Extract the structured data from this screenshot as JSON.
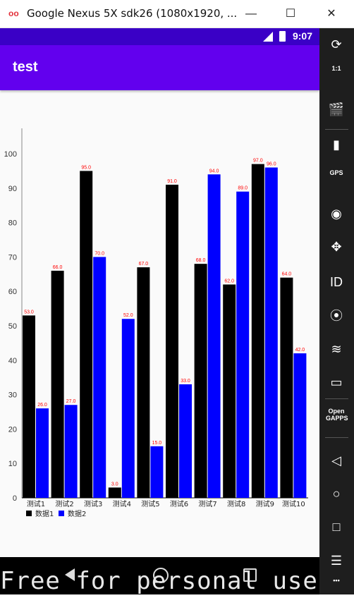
{
  "window": {
    "title": "Google Nexus 5X sdk26 (1080x1920, ...",
    "logo": "oo",
    "minimize": "—",
    "maximize": "☐",
    "close": "✕"
  },
  "status_bar": {
    "time": "9:07"
  },
  "app_bar": {
    "title": "test"
  },
  "watermark": "Free for personal use",
  "colors": {
    "series1": "#000000",
    "series2": "#0000ff",
    "value_label": "#ff0000",
    "app_bar": "#6200ee",
    "status_bar": "#3a00c6"
  },
  "sidebar": {
    "tools": [
      {
        "icon": "rotate-icon",
        "glyph": "⟳"
      },
      {
        "icon": "one-to-one-icon",
        "glyph": "1:1"
      },
      {
        "icon": "clapper-icon",
        "glyph": "🎬"
      },
      {
        "icon": "battery-icon",
        "glyph": "▮"
      },
      {
        "icon": "gps-icon",
        "glyph": "GPS"
      },
      {
        "icon": "camera-icon",
        "glyph": "◉"
      },
      {
        "icon": "dpad-icon",
        "glyph": "✥"
      },
      {
        "icon": "id-icon",
        "glyph": "ID"
      },
      {
        "icon": "media-icon",
        "glyph": "⦿"
      },
      {
        "icon": "rss-icon",
        "glyph": "≋"
      },
      {
        "icon": "message-icon",
        "glyph": "▭"
      },
      {
        "icon": "opengapps-icon",
        "glyph": "Open GAPPS"
      },
      {
        "icon": "back-icon",
        "glyph": "◁"
      },
      {
        "icon": "home-icon",
        "glyph": "○"
      },
      {
        "icon": "overview-icon",
        "glyph": "□"
      },
      {
        "icon": "menu-icon",
        "glyph": "☰"
      },
      {
        "icon": "more-icon",
        "glyph": "•••"
      }
    ]
  },
  "chart_data": {
    "type": "bar",
    "categories": [
      "测试1",
      "测试2",
      "测试3",
      "测试4",
      "测试5",
      "测试6",
      "测试7",
      "测试8",
      "测试9",
      "测试10"
    ],
    "series": [
      {
        "name": "数据1",
        "values": [
          53,
          66,
          95,
          3,
          67,
          91,
          68,
          62,
          97,
          64
        ],
        "labels": [
          "53.0",
          "66.0",
          "95.0",
          "3.0",
          "67.0",
          "91.0",
          "68.0",
          "62.0",
          "97.0",
          "64.0"
        ]
      },
      {
        "name": "数据2",
        "values": [
          26,
          27,
          70,
          52,
          15,
          33,
          94,
          89,
          96,
          42
        ],
        "labels": [
          "26.0",
          "27.0",
          "70.0",
          "52.0",
          "15.0",
          "33.0",
          "94.0",
          "89.0",
          "96.0",
          "42.0"
        ]
      }
    ],
    "yticks": [
      "0",
      "10",
      "20",
      "30",
      "40",
      "50",
      "60",
      "70",
      "80",
      "90",
      "100"
    ],
    "ylim": [
      0,
      100
    ],
    "grid": false,
    "legend_position": "bottom-left"
  }
}
